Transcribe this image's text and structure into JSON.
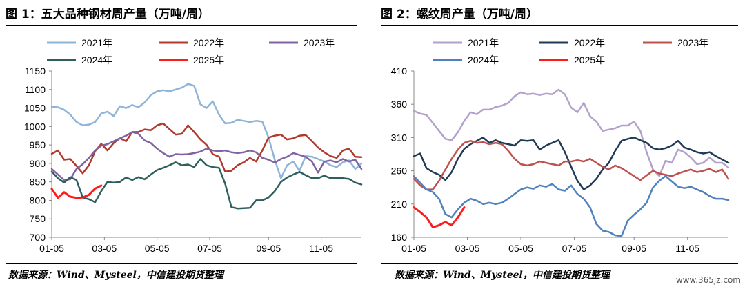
{
  "charts": [
    {
      "title": "图 1：五大品种钢材周产量（万吨/周）",
      "source": "数据来源：Wind、Mysteel，中信建投期货整理"
    },
    {
      "title": "图 2：螺纹周产量（万吨/周）",
      "source": "数据来源：Wind、Mysteel，中信建投期货整理"
    }
  ],
  "watermark": "www.365jz.com",
  "chart_data": [
    {
      "type": "line",
      "title": "图 1：五大品种钢材周产量（万吨/周）",
      "xlabel": "",
      "ylabel": "",
      "x_ticks": [
        "01-05",
        "03-05",
        "05-05",
        "07-05",
        "09-05",
        "11-05"
      ],
      "x_tick_weeks": [
        0,
        8.5,
        17,
        25.5,
        35,
        43.5
      ],
      "ylim": [
        700,
        1150
      ],
      "y_ticks": [
        700,
        750,
        800,
        850,
        900,
        950,
        1000,
        1050,
        1100,
        1150
      ],
      "x_unit": "week index (0 = 01-05)",
      "legend_position": "top",
      "grid": false,
      "series": [
        {
          "name": "2021年",
          "color": "#8eb4d8",
          "width": 2.5,
          "x": [
            0,
            1,
            2,
            3,
            4,
            5,
            6,
            7,
            8,
            9,
            10,
            11,
            12,
            13,
            14,
            15,
            16,
            17,
            18,
            19,
            20,
            21,
            22,
            23,
            24,
            25,
            26,
            27,
            28,
            29,
            30,
            31,
            32,
            33,
            34,
            35,
            36,
            37,
            38,
            39,
            40,
            41,
            42,
            43,
            44,
            45,
            46,
            47,
            48,
            49,
            50
          ],
          "y": [
            1053,
            1052,
            1045,
            1032,
            1012,
            1003,
            1005,
            1012,
            1035,
            1040,
            1028,
            1055,
            1050,
            1058,
            1052,
            1065,
            1085,
            1095,
            1098,
            1095,
            1100,
            1105,
            1115,
            1110,
            1060,
            1050,
            1068,
            1032,
            1008,
            1010,
            1018,
            1015,
            1012,
            1015,
            1013,
            970,
            910,
            860,
            895,
            905,
            880,
            920,
            918,
            912,
            905,
            895,
            890,
            903,
            908,
            885,
            900
          ]
        },
        {
          "name": "2022年",
          "color": "#b03a2e",
          "width": 2.5,
          "x": [
            0,
            1,
            2,
            3,
            4,
            5,
            6,
            7,
            8,
            9,
            10,
            11,
            12,
            13,
            14,
            15,
            16,
            17,
            18,
            19,
            20,
            21,
            22,
            23,
            24,
            25,
            26,
            27,
            28,
            29,
            30,
            31,
            32,
            33,
            34,
            35,
            36,
            37,
            38,
            39,
            40,
            41,
            42,
            43,
            44,
            45,
            46,
            47,
            48,
            49,
            50
          ],
          "y": [
            926,
            935,
            910,
            912,
            893,
            873,
            895,
            933,
            953,
            935,
            955,
            968,
            960,
            985,
            985,
            992,
            990,
            1003,
            1008,
            993,
            978,
            980,
            1003,
            985,
            965,
            950,
            925,
            918,
            878,
            880,
            895,
            903,
            915,
            905,
            935,
            970,
            975,
            978,
            965,
            968,
            975,
            977,
            960,
            943,
            930,
            920,
            915,
            935,
            940,
            918,
            917
          ]
        },
        {
          "name": "2023年",
          "color": "#8064a2",
          "width": 2.5,
          "x": [
            0,
            1,
            2,
            3,
            4,
            5,
            6,
            7,
            8,
            9,
            10,
            11,
            12,
            13,
            14,
            15,
            16,
            17,
            18,
            19,
            20,
            21,
            22,
            23,
            24,
            25,
            26,
            27,
            28,
            29,
            30,
            31,
            32,
            33,
            34,
            35,
            36,
            37,
            38,
            39,
            40,
            41,
            42,
            43,
            44,
            45,
            46,
            47,
            48,
            49,
            50
          ],
          "y": [
            885,
            870,
            855,
            857,
            885,
            898,
            915,
            935,
            948,
            952,
            960,
            968,
            975,
            985,
            980,
            962,
            955,
            940,
            928,
            918,
            925,
            924,
            925,
            928,
            932,
            940,
            935,
            933,
            935,
            930,
            928,
            930,
            935,
            930,
            915,
            910,
            902,
            912,
            918,
            928,
            923,
            918,
            905,
            875,
            905,
            908,
            903,
            912,
            905,
            910,
            885
          ]
        },
        {
          "name": "2024年",
          "color": "#2e5f5f",
          "width": 2.5,
          "x": [
            0,
            1,
            2,
            3,
            4,
            5,
            6,
            7,
            8,
            9,
            10,
            11,
            12,
            13,
            14,
            15,
            16,
            17,
            18,
            19,
            20,
            21,
            22,
            23,
            24,
            25,
            26,
            27,
            28,
            29,
            30,
            31,
            32,
            33,
            34,
            35,
            36,
            37,
            38,
            39,
            40,
            41,
            42,
            43,
            44,
            45,
            46,
            47,
            48,
            49,
            50
          ],
          "y": [
            878,
            860,
            848,
            863,
            855,
            808,
            803,
            795,
            825,
            850,
            848,
            850,
            862,
            855,
            863,
            857,
            870,
            882,
            888,
            895,
            903,
            895,
            897,
            890,
            912,
            895,
            890,
            888,
            845,
            782,
            778,
            779,
            780,
            800,
            800,
            808,
            825,
            850,
            862,
            870,
            877,
            868,
            860,
            860,
            867,
            860,
            860,
            860,
            858,
            848,
            843
          ]
        },
        {
          "name": "2025年",
          "color": "#ff1a1a",
          "width": 3,
          "x": [
            0,
            1,
            2,
            3,
            4,
            5,
            6,
            7,
            8
          ],
          "y": [
            831,
            807,
            822,
            810,
            807,
            808,
            815,
            832,
            840
          ]
        }
      ]
    },
    {
      "type": "line",
      "title": "图 2：螺纹周产量（万吨/周）",
      "xlabel": "",
      "ylabel": "",
      "x_ticks": [
        "01-05",
        "03-05",
        "05-05",
        "07-05",
        "09-05",
        "11-05"
      ],
      "x_tick_weeks": [
        0,
        8.5,
        17,
        25.5,
        35,
        43.5
      ],
      "ylim": [
        160,
        410
      ],
      "y_ticks": [
        160,
        210,
        260,
        310,
        360,
        410
      ],
      "x_unit": "week index (0 = 01-05)",
      "legend_position": "top",
      "grid": false,
      "series": [
        {
          "name": "2021年",
          "color": "#b4a0cc",
          "width": 2.5,
          "x": [
            0,
            1,
            2,
            3,
            4,
            5,
            6,
            7,
            8,
            9,
            10,
            11,
            12,
            13,
            14,
            15,
            16,
            17,
            18,
            19,
            20,
            21,
            22,
            23,
            24,
            25,
            26,
            27,
            28,
            29,
            30,
            31,
            32,
            33,
            34,
            35,
            36,
            37,
            38,
            39,
            40,
            41,
            42,
            43,
            44,
            45,
            46,
            47,
            48,
            49,
            50
          ],
          "y": [
            350,
            346,
            344,
            332,
            320,
            308,
            306,
            318,
            335,
            348,
            345,
            352,
            352,
            356,
            358,
            362,
            372,
            378,
            375,
            376,
            374,
            376,
            375,
            382,
            375,
            355,
            348,
            362,
            342,
            334,
            320,
            322,
            324,
            328,
            328,
            334,
            320,
            288,
            262,
            252,
            275,
            272,
            292,
            288,
            280,
            270,
            272,
            280,
            272,
            272,
            265
          ]
        },
        {
          "name": "2022年",
          "color": "#1f3a56",
          "width": 2.5,
          "x": [
            0,
            1,
            2,
            3,
            4,
            5,
            6,
            7,
            8,
            9,
            10,
            11,
            12,
            13,
            14,
            15,
            16,
            17,
            18,
            19,
            20,
            21,
            22,
            23,
            24,
            25,
            26,
            27,
            28,
            29,
            30,
            31,
            32,
            33,
            34,
            35,
            36,
            37,
            38,
            39,
            40,
            41,
            42,
            43,
            44,
            45,
            46,
            47,
            48,
            49,
            50
          ],
          "y": [
            282,
            286,
            264,
            258,
            254,
            246,
            258,
            278,
            293,
            300,
            305,
            310,
            302,
            306,
            302,
            300,
            298,
            306,
            305,
            306,
            292,
            298,
            302,
            306,
            288,
            266,
            245,
            232,
            238,
            248,
            262,
            272,
            290,
            305,
            308,
            310,
            306,
            302,
            294,
            292,
            294,
            298,
            305,
            295,
            292,
            288,
            286,
            288,
            282,
            277,
            272
          ]
        },
        {
          "name": "2023年",
          "color": "#c0504d",
          "width": 2.5,
          "x": [
            0,
            1,
            2,
            3,
            4,
            5,
            6,
            7,
            8,
            9,
            10,
            11,
            12,
            13,
            14,
            15,
            16,
            17,
            18,
            19,
            20,
            21,
            22,
            23,
            24,
            25,
            26,
            27,
            28,
            29,
            30,
            31,
            32,
            33,
            34,
            35,
            36,
            37,
            38,
            39,
            40,
            41,
            42,
            43,
            44,
            45,
            46,
            47,
            48,
            49,
            50
          ],
          "y": [
            248,
            238,
            232,
            232,
            245,
            262,
            278,
            292,
            302,
            305,
            302,
            303,
            300,
            302,
            300,
            290,
            278,
            270,
            268,
            270,
            274,
            272,
            270,
            268,
            274,
            274,
            276,
            274,
            278,
            272,
            266,
            262,
            268,
            264,
            258,
            252,
            246,
            253,
            260,
            256,
            254,
            252,
            256,
            259,
            262,
            258,
            260,
            263,
            258,
            262,
            248
          ]
        },
        {
          "name": "2024年",
          "color": "#4f81bd",
          "width": 2.5,
          "x": [
            0,
            1,
            2,
            3,
            4,
            5,
            6,
            7,
            8,
            9,
            10,
            11,
            12,
            13,
            14,
            15,
            16,
            17,
            18,
            19,
            20,
            21,
            22,
            23,
            24,
            25,
            26,
            27,
            28,
            29,
            30,
            31,
            32,
            33,
            34,
            35,
            36,
            37,
            38,
            39,
            40,
            41,
            42,
            43,
            44,
            45,
            46,
            47,
            48,
            49,
            50
          ],
          "y": [
            252,
            242,
            232,
            228,
            218,
            195,
            190,
            202,
            212,
            218,
            215,
            210,
            212,
            210,
            212,
            218,
            225,
            232,
            235,
            233,
            238,
            236,
            240,
            232,
            230,
            238,
            225,
            218,
            205,
            180,
            170,
            168,
            163,
            162,
            185,
            194,
            202,
            212,
            235,
            245,
            252,
            244,
            236,
            234,
            236,
            232,
            228,
            222,
            218,
            218,
            216
          ]
        },
        {
          "name": "2025年",
          "color": "#ff1a1a",
          "width": 3,
          "x": [
            0,
            1,
            2,
            3,
            4,
            5,
            6,
            7,
            8
          ],
          "y": [
            205,
            198,
            190,
            175,
            178,
            183,
            178,
            190,
            205
          ]
        }
      ]
    }
  ]
}
